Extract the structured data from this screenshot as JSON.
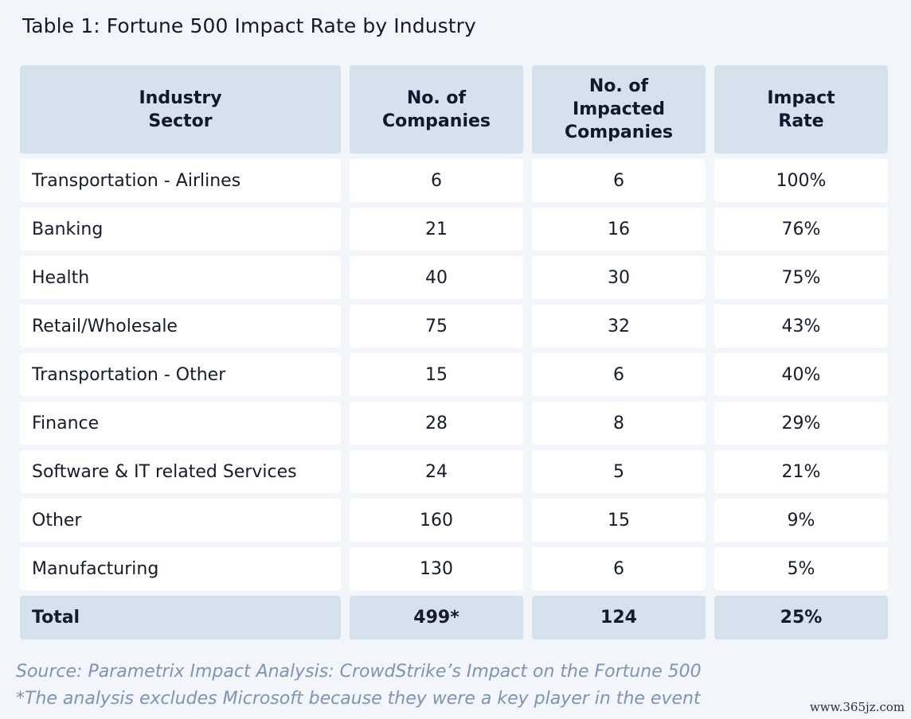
{
  "title": "Table 1: Fortune 500  Impact Rate by Industry",
  "headers": [
    "Industry\nSector",
    "No. of\nCompanies",
    "No. of\nImpacted\nCompanies",
    "Impact\nRate"
  ],
  "rows": [
    [
      "Transportation - Airlines",
      "6",
      "6",
      "100%"
    ],
    [
      "Banking",
      "21",
      "16",
      "76%"
    ],
    [
      "Health",
      "40",
      "30",
      "75%"
    ],
    [
      "Retail/Wholesale",
      "75",
      "32",
      "43%"
    ],
    [
      "Transportation - Other",
      "15",
      "6",
      "40%"
    ],
    [
      "Finance",
      "28",
      "8",
      "29%"
    ],
    [
      "Software & IT related Services",
      "24",
      "5",
      "21%"
    ],
    [
      "Other",
      "160",
      "15",
      "9%"
    ],
    [
      "Manufacturing",
      "130",
      "6",
      "5%"
    ]
  ],
  "total": [
    "Total",
    "499*",
    "124",
    "25%"
  ],
  "footnotes": {
    "source": "Source: Parametrix Impact Analysis: CrowdStrike’s Impact on the Fortune 500",
    "note": "*The analysis excludes Microsoft because they were a key player in the event"
  },
  "watermark": "www.365jz.com",
  "colors": {
    "background": "#f2f5fa",
    "header_fill": "#d6e1ee",
    "cell_fill": "#ffffff",
    "footnote": "#7f93b4"
  }
}
